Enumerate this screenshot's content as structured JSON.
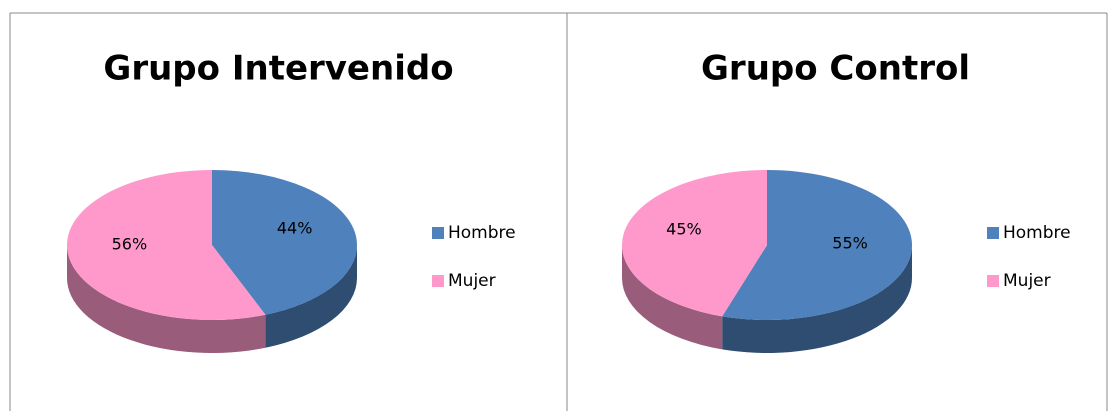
{
  "chart_data": [
    {
      "type": "pie",
      "title": "Grupo Intervenido",
      "categories": [
        "Hombre",
        "Mujer"
      ],
      "values": [
        44,
        56
      ],
      "value_labels": [
        "44%",
        "56%"
      ],
      "colors": [
        "#4f81bd",
        "#ff99cc"
      ],
      "legend": "right"
    },
    {
      "type": "pie",
      "title": "Grupo Control",
      "categories": [
        "Hombre",
        "Mujer"
      ],
      "values": [
        55,
        45
      ],
      "value_labels": [
        "55%",
        "45%"
      ],
      "colors": [
        "#4f81bd",
        "#ff99cc"
      ],
      "legend": "right"
    }
  ]
}
